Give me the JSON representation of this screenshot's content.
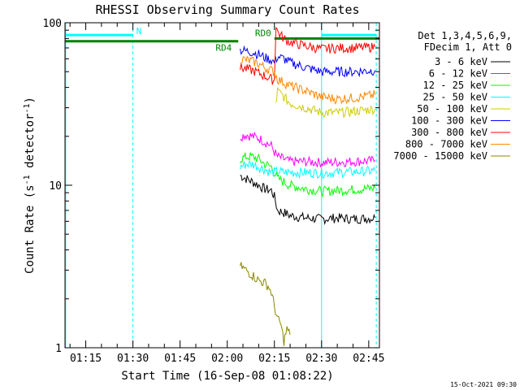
{
  "chart_data": {
    "type": "line",
    "title": "RHESSI Observing Summary Count Rates",
    "xlabel": "Start Time (16-Sep-08 01:08:22)",
    "ylabel_main": "Count Rate (s",
    "ylabel_sup": "-1",
    "ylabel_tail": " detector",
    "ylabel_end": ")",
    "yscale": "log",
    "ylim": [
      1,
      100
    ],
    "xlim_minutes": [
      68.4,
      168.4
    ],
    "y_ticks": [
      {
        "value": 1,
        "label": "1"
      },
      {
        "value": 10,
        "label": "10"
      },
      {
        "value": 100,
        "label": "100"
      }
    ],
    "x_ticks": [
      {
        "minute": 75,
        "label": "01:15"
      },
      {
        "minute": 90,
        "label": "01:30"
      },
      {
        "minute": 105,
        "label": "01:45"
      },
      {
        "minute": 120,
        "label": "02:00"
      },
      {
        "minute": 135,
        "label": "02:15"
      },
      {
        "minute": 150,
        "label": "02:30"
      },
      {
        "minute": 165,
        "label": "02:45"
      }
    ],
    "legend_header": [
      "Det 1,3,4,5,6,9,",
      "FDecim 1, Att 0"
    ],
    "series": [
      {
        "name": "3 - 6 keV",
        "color": "#000000",
        "points": [
          [
            124.1,
            11.5
          ],
          [
            126,
            11
          ],
          [
            128,
            10.5
          ],
          [
            130,
            10
          ],
          [
            132,
            9.5
          ],
          [
            134,
            9.3
          ],
          [
            135,
            8.5
          ],
          [
            136,
            7
          ],
          [
            138,
            6.8
          ],
          [
            140,
            6.5
          ],
          [
            145,
            6.3
          ],
          [
            150,
            6.2
          ],
          [
            155,
            6.3
          ],
          [
            160,
            6.2
          ],
          [
            167,
            6.3
          ]
        ]
      },
      {
        "name": "6 - 12 keV",
        "color": "#ff00ff",
        "points": [
          [
            124.1,
            20
          ],
          [
            126,
            20.5
          ],
          [
            128,
            20
          ],
          [
            130,
            19.5
          ],
          [
            132,
            18.5
          ],
          [
            134,
            17.5
          ],
          [
            135,
            16
          ],
          [
            136,
            15
          ],
          [
            138,
            14.5
          ],
          [
            140,
            14
          ],
          [
            145,
            14
          ],
          [
            150,
            13.8
          ],
          [
            155,
            13.9
          ],
          [
            160,
            14
          ],
          [
            167,
            14.2
          ]
        ]
      },
      {
        "name": "12 - 25 keV",
        "color": "#00ff00",
        "points": [
          [
            124.1,
            14.5
          ],
          [
            126,
            15
          ],
          [
            128,
            15
          ],
          [
            130,
            14.5
          ],
          [
            132,
            13.5
          ],
          [
            134,
            13
          ],
          [
            135,
            12
          ],
          [
            136,
            11
          ],
          [
            138,
            10.5
          ],
          [
            140,
            10
          ],
          [
            145,
            9.5
          ],
          [
            150,
            9.2
          ],
          [
            155,
            9.3
          ],
          [
            160,
            9.4
          ],
          [
            167,
            9.6
          ]
        ]
      },
      {
        "name": "25 - 50 keV",
        "color": "#00ffff",
        "points": [
          [
            124.1,
            13
          ],
          [
            126,
            13.5
          ],
          [
            128,
            13.5
          ],
          [
            130,
            13
          ],
          [
            132,
            12.5
          ],
          [
            134,
            12
          ],
          [
            135,
            12
          ],
          [
            136,
            12.2
          ],
          [
            138,
            12
          ],
          [
            140,
            12
          ],
          [
            145,
            12
          ],
          [
            150,
            11.9
          ],
          [
            155,
            12
          ],
          [
            160,
            12.1
          ],
          [
            167,
            12.3
          ]
        ]
      },
      {
        "name": "50 - 100 keV",
        "color": "#cccc00",
        "points": [
          [
            135.5,
            32
          ],
          [
            136,
            38
          ],
          [
            138,
            35
          ],
          [
            140,
            32
          ],
          [
            145,
            30
          ],
          [
            150,
            28
          ],
          [
            155,
            28
          ],
          [
            160,
            28.5
          ],
          [
            167,
            29.5
          ]
        ]
      },
      {
        "name": "100 - 300 keV",
        "color": "#0000ff",
        "points": [
          [
            124.1,
            68
          ],
          [
            126,
            67
          ],
          [
            128,
            66
          ],
          [
            130,
            64
          ],
          [
            132,
            61
          ],
          [
            134,
            59
          ],
          [
            135,
            57
          ],
          [
            136,
            62
          ],
          [
            138,
            60
          ],
          [
            140,
            57
          ],
          [
            145,
            53
          ],
          [
            150,
            50
          ],
          [
            155,
            50
          ],
          [
            160,
            50
          ],
          [
            167,
            51
          ]
        ]
      },
      {
        "name": "300 - 800 keV",
        "color": "#ff0000",
        "points": [
          [
            124.1,
            53
          ],
          [
            126,
            52
          ],
          [
            128,
            51
          ],
          [
            130,
            49
          ],
          [
            132,
            47
          ],
          [
            134,
            45
          ],
          [
            135,
            44
          ],
          [
            135.5,
            98
          ],
          [
            136,
            88
          ],
          [
            138,
            80
          ],
          [
            140,
            76
          ],
          [
            145,
            72
          ],
          [
            150,
            69
          ],
          [
            155,
            70
          ],
          [
            160,
            70
          ],
          [
            167,
            71
          ]
        ]
      },
      {
        "name": "800 - 7000 keV",
        "color": "#ff8800",
        "points": [
          [
            124.1,
            60
          ],
          [
            126,
            59
          ],
          [
            128,
            58
          ],
          [
            130,
            56
          ],
          [
            132,
            53
          ],
          [
            134,
            51
          ],
          [
            135,
            50
          ],
          [
            136,
            45
          ],
          [
            138,
            43
          ],
          [
            140,
            41
          ],
          [
            145,
            38
          ],
          [
            150,
            35
          ],
          [
            155,
            34
          ],
          [
            160,
            34.5
          ],
          [
            167,
            36
          ]
        ]
      },
      {
        "name": "7000 - 15000 keV",
        "color": "#888800",
        "points": [
          [
            124.1,
            3.2
          ],
          [
            126,
            3
          ],
          [
            128,
            2.8
          ],
          [
            130,
            2.6
          ],
          [
            132,
            2.5
          ],
          [
            133,
            2.4
          ],
          [
            134,
            2.2
          ],
          [
            135,
            1.8
          ],
          [
            136,
            1.5
          ],
          [
            137,
            1.4
          ],
          [
            138,
            1.1
          ],
          [
            139,
            1.3
          ],
          [
            140,
            1.2
          ]
        ]
      }
    ],
    "state_bars": [
      {
        "label": "N",
        "color": "#00ffff",
        "ranges": [
          [
            68.4,
            90
          ],
          [
            150,
            167.4
          ]
        ],
        "level": 84
      },
      {
        "label": "RD0",
        "color": "#008000",
        "ranges": [
          [
            135,
            168.4
          ]
        ],
        "level": 80
      },
      {
        "label": "RD4",
        "color": "#008000",
        "ranges": [
          [
            68.4,
            123.5
          ]
        ],
        "level": 77
      }
    ],
    "vertical_markers": [
      {
        "minute": 68.6,
        "color": "#00ffff",
        "style": "solid"
      },
      {
        "minute": 90,
        "color": "#00ffff",
        "style": "dashed"
      },
      {
        "minute": 150,
        "color": "#00ffff",
        "style": "solid"
      },
      {
        "minute": 167.4,
        "color": "#00ffff",
        "style": "dashed"
      }
    ],
    "grid": false,
    "legend_position": "right"
  },
  "timestamp": "15-Oct-2021 09:30"
}
